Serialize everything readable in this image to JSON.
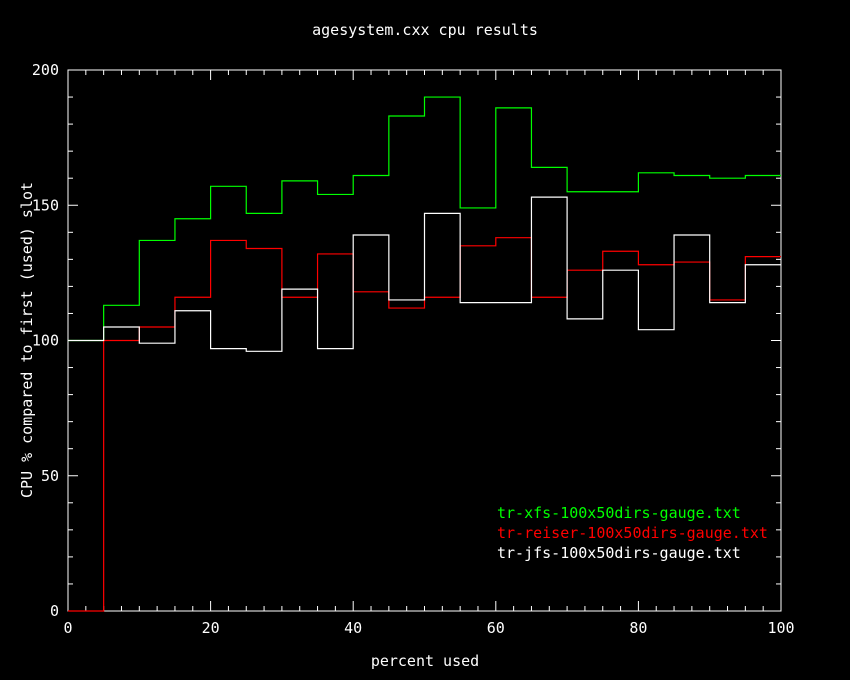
{
  "chart_data": {
    "type": "line",
    "step": true,
    "title": "agesystem.cxx cpu results",
    "xlabel": "percent used",
    "ylabel": "CPU % compared to first (used) slot",
    "xlim": [
      0,
      100
    ],
    "ylim": [
      0,
      200
    ],
    "xticks": [
      0,
      20,
      40,
      60,
      80,
      100
    ],
    "yticks": [
      0,
      50,
      100,
      150,
      200
    ],
    "grid": false,
    "legend_position": "bottom-right",
    "x": [
      0,
      5,
      10,
      15,
      20,
      25,
      30,
      35,
      40,
      45,
      50,
      55,
      60,
      65,
      70,
      75,
      80,
      85,
      90,
      95,
      100
    ],
    "series": [
      {
        "name": "tr-xfs-100x50dirs-gauge.txt",
        "color": "#00ff00",
        "values": [
          100,
          113,
          137,
          145,
          157,
          147,
          159,
          154,
          161,
          183,
          190,
          149,
          186,
          164,
          155,
          155,
          162,
          161,
          160,
          161,
          161
        ]
      },
      {
        "name": "tr-reiser-100x50dirs-gauge.txt",
        "color": "#ff0000",
        "values": [
          0,
          100,
          105,
          116,
          137,
          134,
          116,
          132,
          118,
          112,
          116,
          135,
          138,
          116,
          126,
          133,
          128,
          129,
          115,
          131,
          131
        ]
      },
      {
        "name": "tr-jfs-100x50dirs-gauge.txt",
        "color": "#ffffff",
        "values": [
          100,
          105,
          99,
          111,
          97,
          96,
          119,
          97,
          139,
          115,
          147,
          114,
          114,
          153,
          108,
          126,
          104,
          139,
          114,
          128,
          128
        ]
      }
    ]
  }
}
